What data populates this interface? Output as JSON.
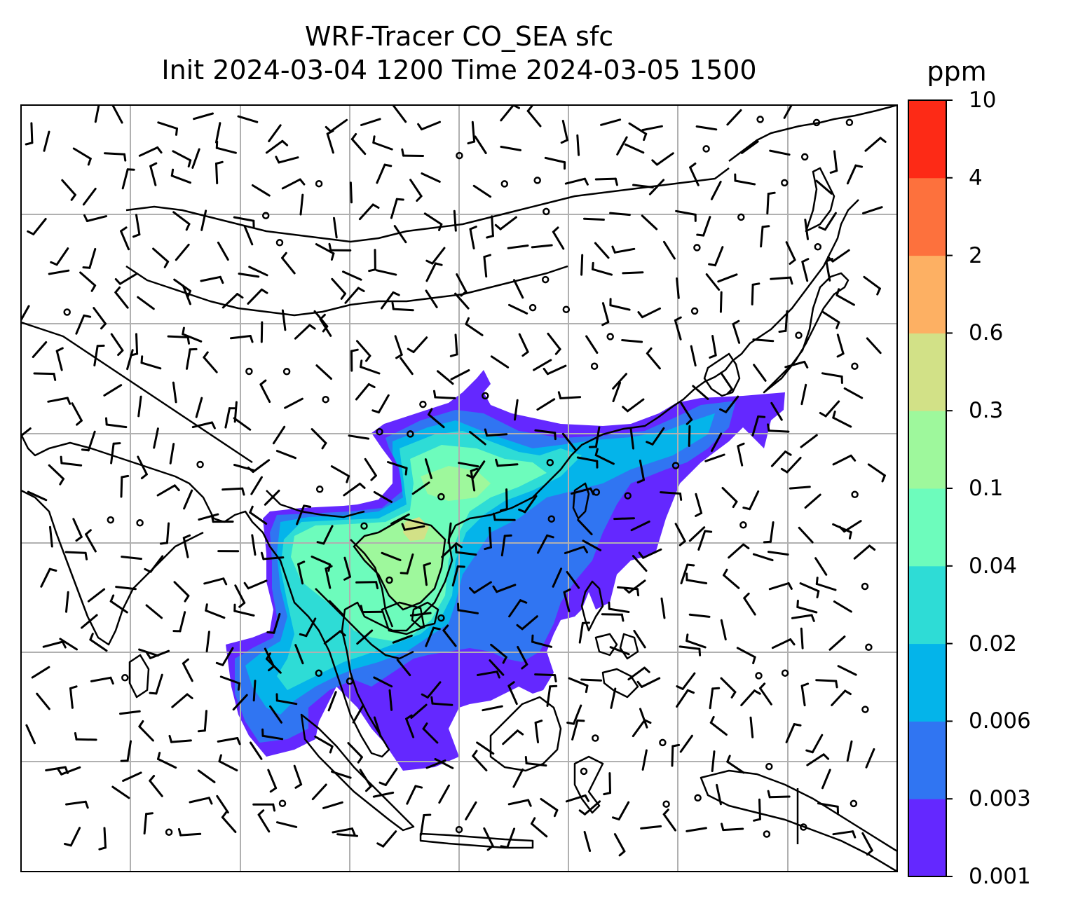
{
  "title": {
    "line1": "WRF-Tracer CO_SEA sfc",
    "line2": "Init 2024-03-04 1200 Time 2024-03-05 1500"
  },
  "colorbar": {
    "units": "ppm",
    "levels": [
      "0.001",
      "0.003",
      "0.006",
      "0.02",
      "0.04",
      "0.1",
      "0.3",
      "0.6",
      "2",
      "4",
      "10"
    ],
    "colors": [
      "#6428ff",
      "#3075f2",
      "#04b4ea",
      "#2edcd6",
      "#6dfcbc",
      "#9ef89c",
      "#d2e187",
      "#fdb063",
      "#fd713d",
      "#fd2a16"
    ]
  },
  "map": {
    "plume_colors": {
      "level_0_001": "#6428ff",
      "level_0_003": "#3075f2",
      "level_0_006": "#04b4ea",
      "level_0_02": "#2edcd6",
      "level_0_04": "#6dfcbc",
      "level_0_1": "#9ef89c",
      "level_0_3": "#d2e187"
    },
    "gridlines": true,
    "coastlines": true,
    "country_borders": true,
    "wind_barbs": true
  }
}
